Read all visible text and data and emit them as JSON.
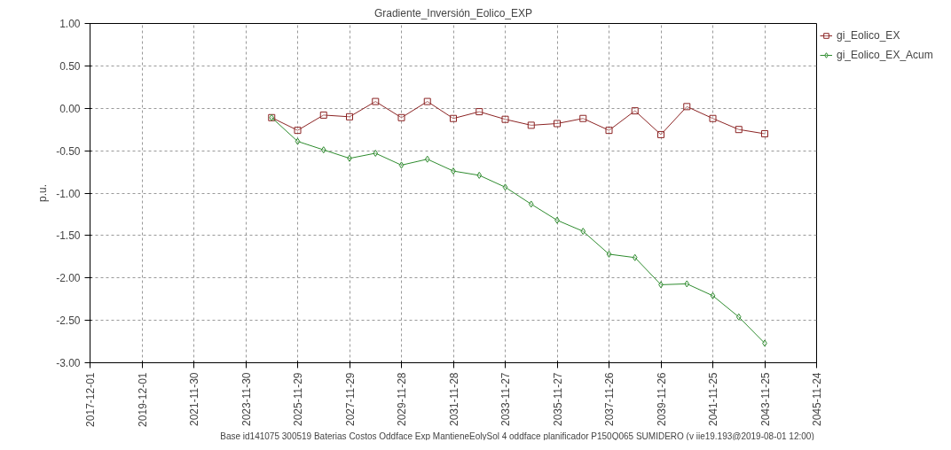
{
  "chart_data": {
    "type": "line",
    "title": "Gradiente_Inversión_Eolico_EXP",
    "ylabel": "p.u.",
    "x": [
      "2024-11-29",
      "2025-11-29",
      "2026-11-29",
      "2027-11-29",
      "2028-11-28",
      "2029-11-28",
      "2030-11-28",
      "2031-11-28",
      "2032-11-27",
      "2033-11-27",
      "2034-11-27",
      "2035-11-27",
      "2036-11-26",
      "2037-11-26",
      "2038-11-26",
      "2039-11-26",
      "2040-11-25",
      "2041-11-25",
      "2042-11-25",
      "2043-11-25"
    ],
    "series": [
      {
        "name": "gi_Eolico_EX",
        "color": "#8b2323",
        "marker": "square",
        "values": [
          -0.11,
          -0.26,
          -0.08,
          -0.1,
          0.08,
          -0.11,
          0.08,
          -0.12,
          -0.04,
          -0.13,
          -0.2,
          -0.18,
          -0.12,
          -0.26,
          -0.03,
          -0.31,
          0.02,
          -0.12,
          -0.25,
          -0.3
        ]
      },
      {
        "name": "gi_Eolico_EX_Acum",
        "color": "#2e8b2e",
        "marker": "diamond",
        "values": [
          -0.11,
          -0.39,
          -0.49,
          -0.59,
          -0.53,
          -0.67,
          -0.6,
          -0.74,
          -0.79,
          -0.93,
          -1.13,
          -1.32,
          -1.45,
          -1.72,
          -1.76,
          -2.08,
          -2.07,
          -2.21,
          -2.46,
          -2.77
        ]
      }
    ],
    "xlim": [
      "2017-12-01",
      "2045-11-24"
    ],
    "xticks": [
      "2017-12-01",
      "2019-12-01",
      "2021-11-30",
      "2023-11-30",
      "2025-11-29",
      "2027-11-29",
      "2029-11-28",
      "2031-11-28",
      "2033-11-27",
      "2035-11-27",
      "2037-11-26",
      "2039-11-26",
      "2041-11-25",
      "2043-11-25",
      "2045-11-24"
    ],
    "ylim": [
      -3,
      1
    ],
    "yticks": [
      {
        "value": 1,
        "label": "1.00"
      },
      {
        "value": 0.5,
        "label": "0.50"
      },
      {
        "value": 0,
        "label": "0.00"
      },
      {
        "value": -0.5,
        "label": "-0.50"
      },
      {
        "value": -1,
        "label": "-1.00"
      },
      {
        "value": -1.5,
        "label": "-1.50"
      },
      {
        "value": -2,
        "label": "-2.00"
      },
      {
        "value": -2.5,
        "label": "-2.50"
      },
      {
        "value": -3,
        "label": "-3.00"
      }
    ],
    "grid": true,
    "legend": "top right",
    "line_style": "solid",
    "annotations": [
      "Base id141075 300519 Baterias Costos Oddface Exp MantieneEolySol 4 oddface  planificador P150Q065 SUMIDERO (v iie19.193@2019-08-01 12:00)"
    ]
  }
}
